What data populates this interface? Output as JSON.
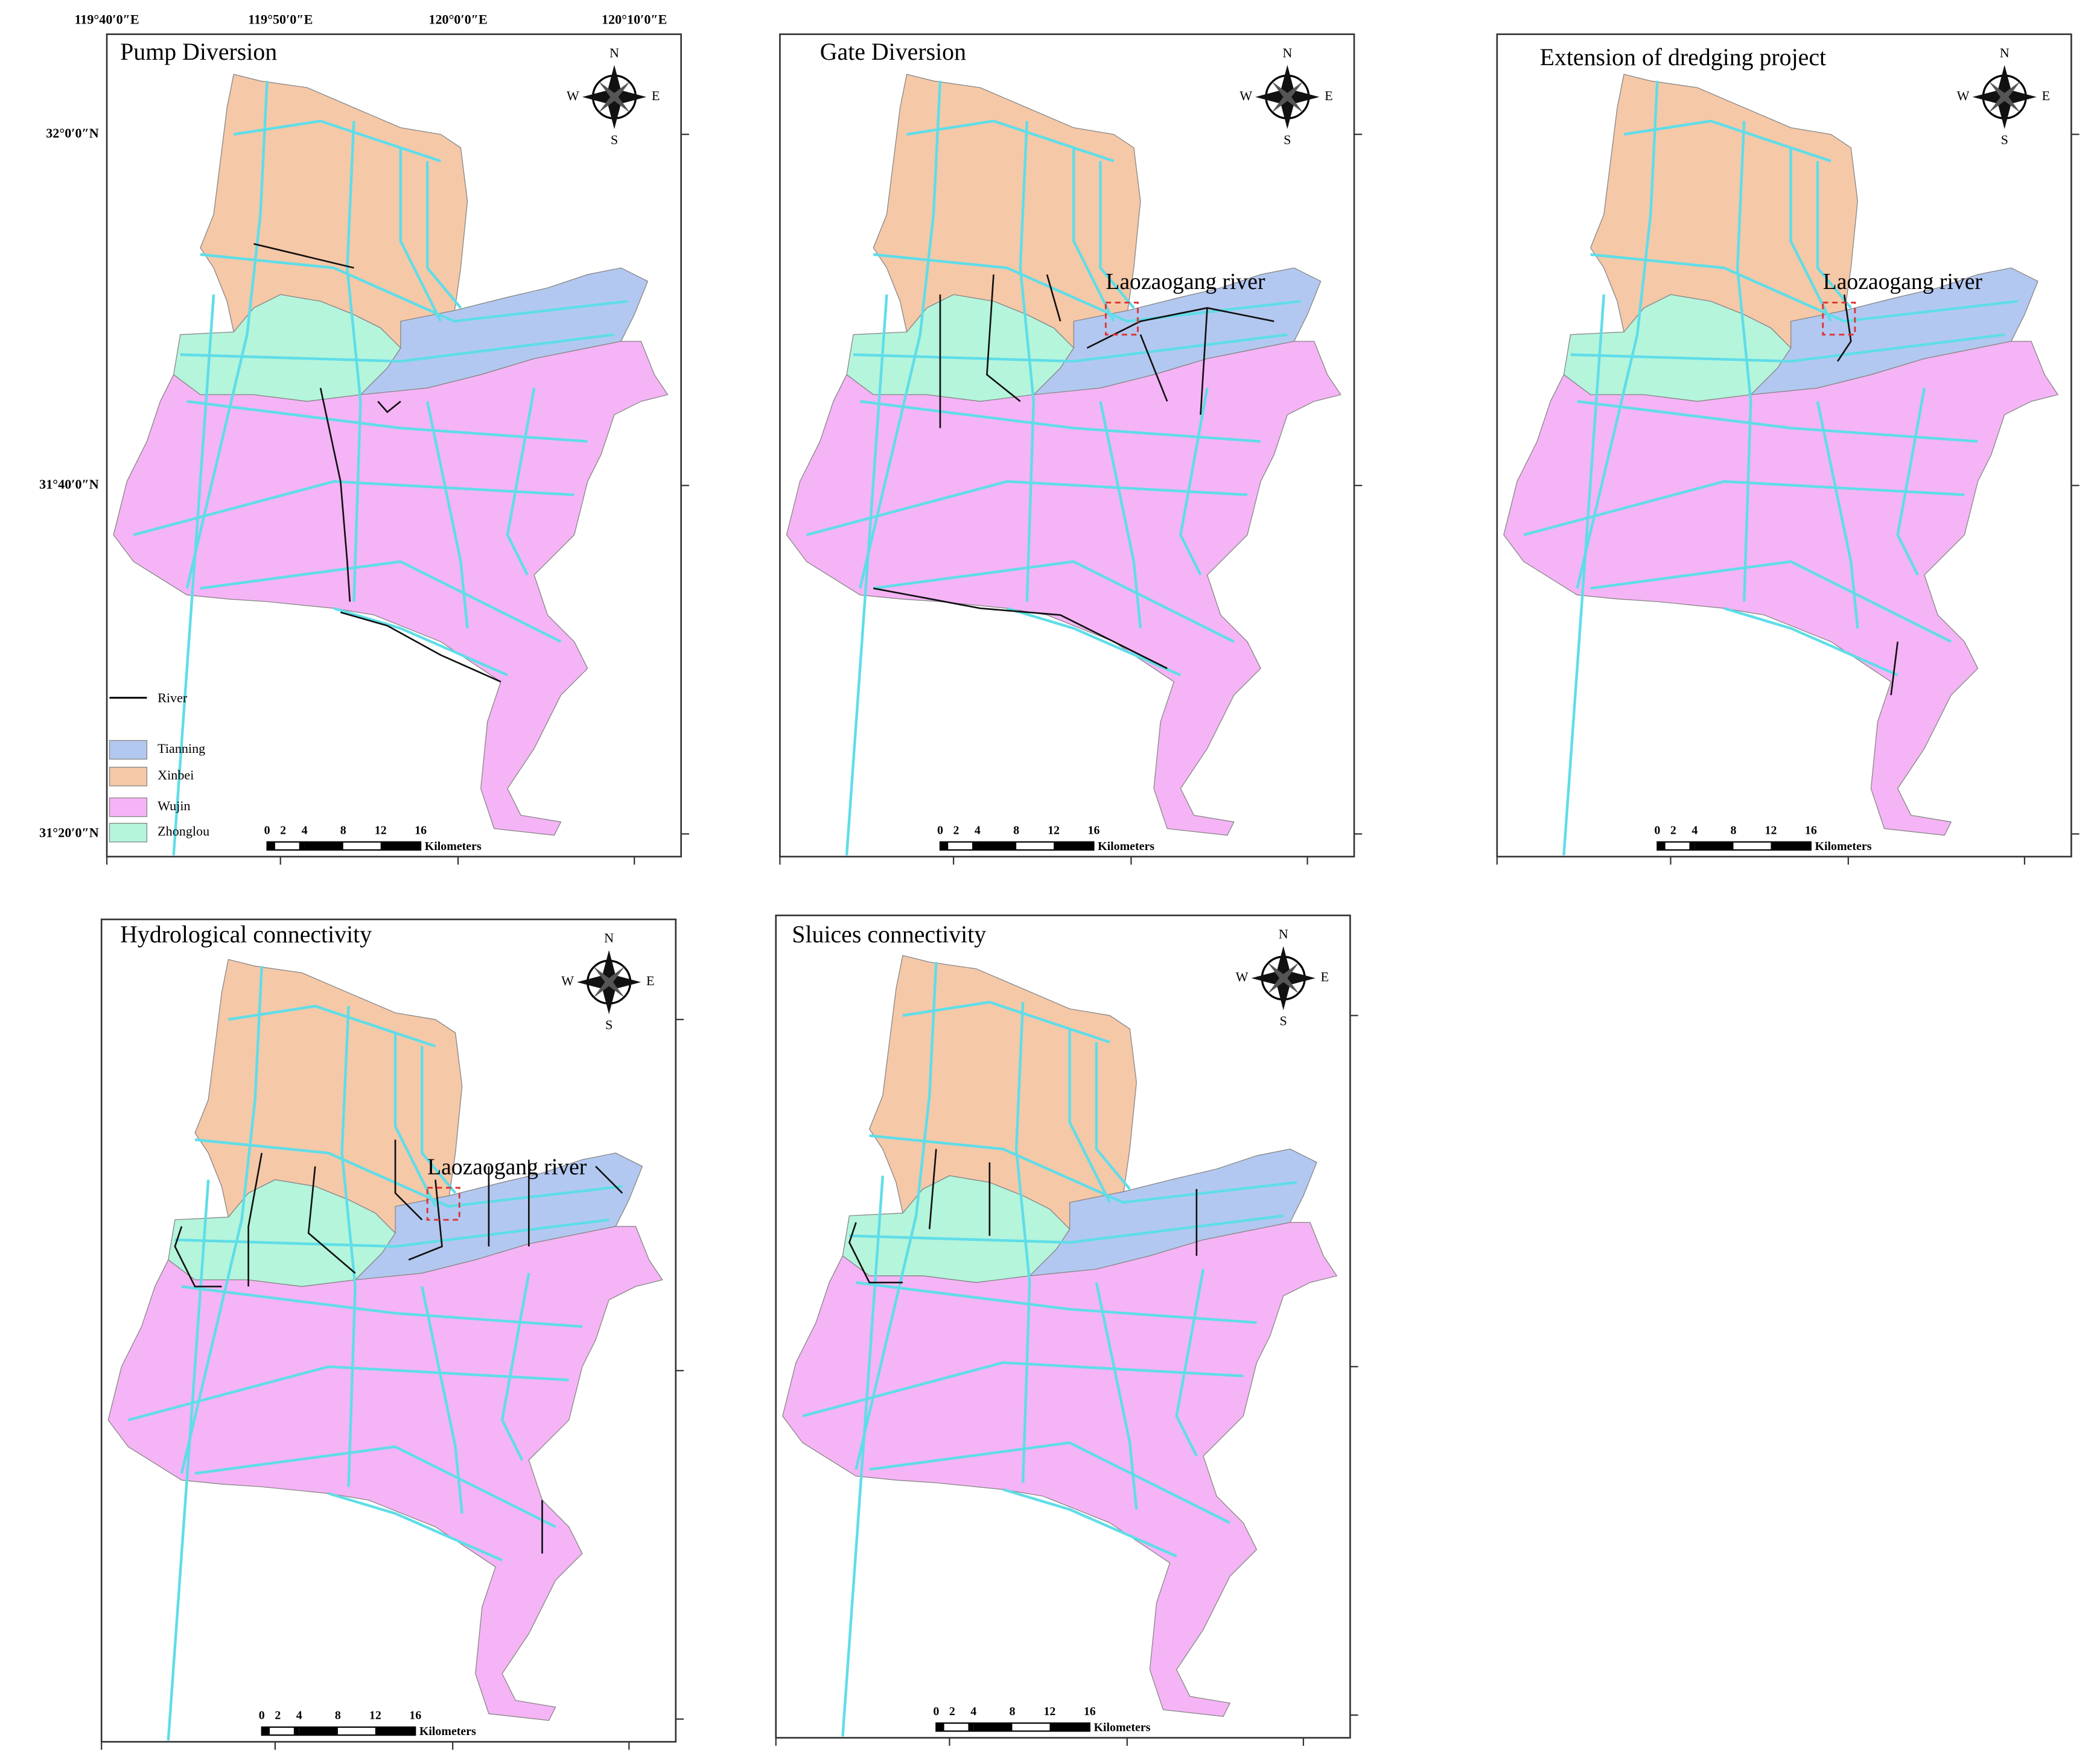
{
  "axes": {
    "x_labels": [
      "119°40′0″E",
      "119°50′0″E",
      "120°0′0″E",
      "120°10′0″E"
    ],
    "y_labels": [
      "32°0′0″N",
      "31°40′0″N",
      "31°20′0″N"
    ]
  },
  "legend": {
    "river": "River",
    "regions": [
      "Tianning",
      "Xinbei",
      "Wujin",
      "Zhonglou"
    ]
  },
  "compass": {
    "n": "N",
    "s": "S",
    "w": "W",
    "e": "E"
  },
  "scale_bar": {
    "ticks": [
      0,
      2,
      4,
      8,
      12,
      16
    ],
    "unit": "Kilometers"
  },
  "panels": [
    {
      "title": "Pump Diversion"
    },
    {
      "title": "Gate Diversion",
      "annotation": "Laozaogang river"
    },
    {
      "title": "Extension of dredging project",
      "annotation": "Laozaogang river"
    },
    {
      "title": "Hydrological connectivity",
      "annotation": "Laozaogang river"
    },
    {
      "title": "Sluices connectivity"
    }
  ]
}
